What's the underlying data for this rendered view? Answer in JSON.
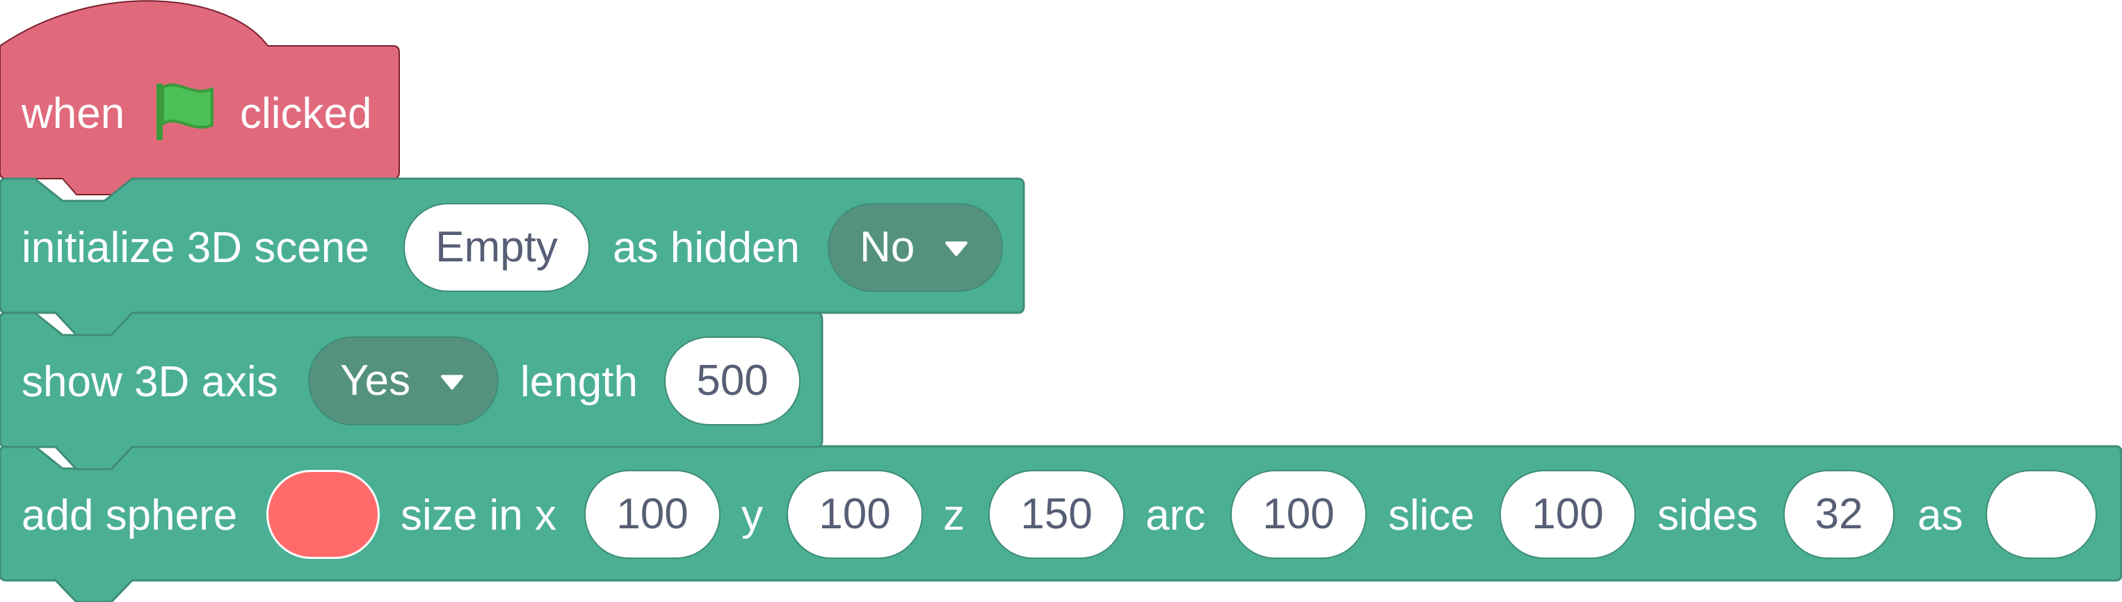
{
  "hat_block": {
    "label_when": "when",
    "flag_icon": "green-flag-icon",
    "label_clicked": "clicked",
    "color": "#e06a7c"
  },
  "init_block": {
    "label": "initialize 3D scene",
    "scene_value": "Empty",
    "label_hidden": "as hidden",
    "hidden_value": "No"
  },
  "axis_block": {
    "label": "show 3D axis",
    "axis_value": "Yes",
    "label_length": "length",
    "length_value": "500"
  },
  "sphere_block": {
    "label": "add sphere",
    "color_value": "#ff6b6b",
    "label_size_x": "size in x",
    "x_value": "100",
    "label_y": "y",
    "y_value": "100",
    "label_z": "z",
    "z_value": "150",
    "label_arc": "arc",
    "arc_value": "100",
    "label_slice": "slice",
    "slice_value": "100",
    "label_sides": "sides",
    "sides_value": "32",
    "label_as": "as",
    "as_value": ""
  },
  "theme": {
    "block_green": "#4baf94",
    "block_green_border": "#3e8d75",
    "dropdown_green": "#55927e"
  }
}
